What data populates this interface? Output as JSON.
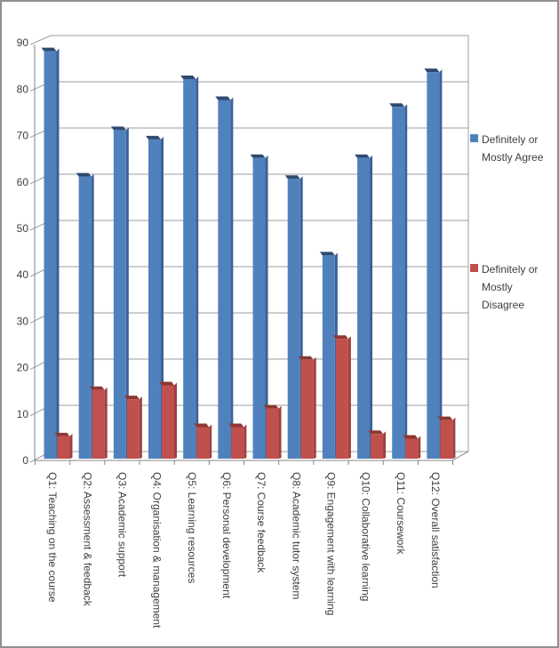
{
  "chart_data": {
    "type": "bar",
    "style": "3d-clustered-column",
    "title": "",
    "xlabel": "",
    "ylabel": "",
    "categories": [
      "Q1: Teaching on the course",
      "Q2: Assessment & feedback",
      "Q3: Academic support",
      "Q4: Organisation & management",
      "Q5: Learning resources",
      "Q6: Personal development",
      "Q7: Course feedback",
      "Q8: Academic tutor system",
      "Q9: Engagement with learning",
      "Q10: Collaborative learning",
      "Q11: Coursework",
      "Q12: Overall satisfaction"
    ],
    "series": [
      {
        "name": "Definitely or Mostly Agree",
        "values": [
          88,
          61,
          71,
          69,
          82,
          77.5,
          65,
          60.5,
          44,
          65,
          76,
          83.5
        ],
        "color": "#4f81bd",
        "color_top": "#2e4a70",
        "color_side": "#3a6296"
      },
      {
        "name": "Definitely or Mostly Disagree",
        "values": [
          5,
          15,
          13,
          16,
          7,
          7,
          11,
          21.5,
          26,
          5.5,
          4.5,
          8.5
        ],
        "color": "#c0504d",
        "color_top": "#8c3835",
        "color_side": "#9e403d"
      }
    ],
    "ylim": [
      0,
      90
    ],
    "ytick_step": 10,
    "yticks": [
      0,
      10,
      20,
      30,
      40,
      50,
      60,
      70,
      80,
      90
    ],
    "grid": true,
    "legend_position": "right",
    "axis_text_color": "#3f3f3f",
    "gridline_color": "#9c9c9c",
    "axis_line_color": "#858585"
  }
}
